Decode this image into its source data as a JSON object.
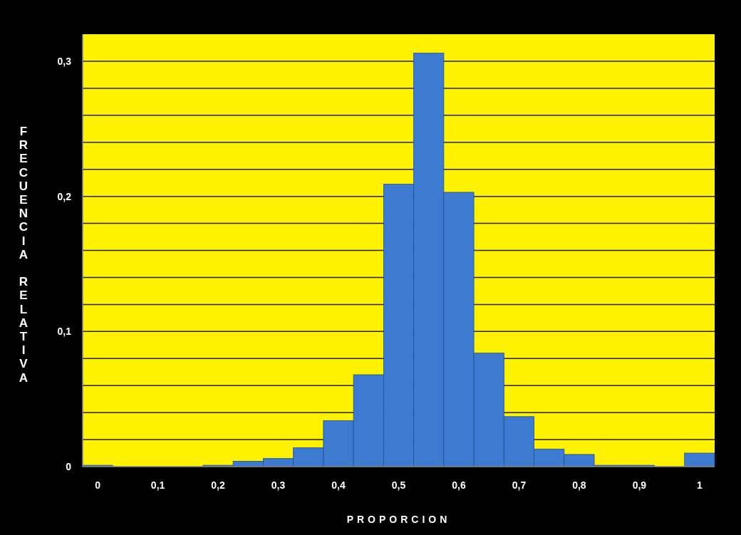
{
  "chart_data": {
    "type": "histogram",
    "xlabel": "PROPORCION",
    "ylabel": "FRECUENCIA RELATIVA",
    "bins": [
      -0.025,
      0.025,
      0.075,
      0.125,
      0.175,
      0.225,
      0.275,
      0.325,
      0.375,
      0.425,
      0.475,
      0.525,
      0.575,
      0.625,
      0.675,
      0.725,
      0.775,
      0.825,
      0.875,
      0.925,
      0.975,
      1.025
    ],
    "values": [
      0.001,
      0,
      0,
      0,
      0.001,
      0.004,
      0.006,
      0.014,
      0.034,
      0.068,
      0.209,
      0.306,
      0.203,
      0.084,
      0.037,
      0.013,
      0.009,
      0.001,
      0.001,
      0,
      0.01
    ],
    "color": "#3d7bd0",
    "xlim": [
      -0.025,
      1.025
    ],
    "xticks": [
      0,
      {
        "value": 0.1,
        "label": "0,1"
      },
      {
        "value": 0.2,
        "label": "0,2"
      },
      {
        "value": 0.3,
        "label": "0,3"
      },
      {
        "value": 0.4,
        "label": "0,4"
      },
      {
        "value": 0.5,
        "label": "0,5"
      },
      {
        "value": 0.6,
        "label": "0,6"
      },
      {
        "value": 0.7,
        "label": "0,7"
      },
      {
        "value": 0.8,
        "label": "0,8"
      },
      {
        "value": 0.9,
        "label": "0,9"
      },
      1
    ],
    "ylim": [
      0,
      0.32
    ],
    "yticks": [
      0,
      {
        "value": 0.02,
        "label": null
      },
      {
        "value": 0.04,
        "label": null
      },
      {
        "value": 0.06,
        "label": null
      },
      {
        "value": 0.08,
        "label": null
      },
      {
        "value": 0.1,
        "label": "0,1"
      },
      {
        "value": 0.12,
        "label": null
      },
      {
        "value": 0.14,
        "label": null
      },
      {
        "value": 0.16,
        "label": null
      },
      {
        "value": 0.18,
        "label": null
      },
      {
        "value": 0.2,
        "label": "0,2"
      },
      {
        "value": 0.22,
        "label": null
      },
      {
        "value": 0.24,
        "label": null
      },
      {
        "value": 0.26,
        "label": null
      },
      {
        "value": 0.28,
        "label": null
      },
      {
        "value": 0.3,
        "label": "0,3"
      }
    ],
    "grid": "y"
  }
}
